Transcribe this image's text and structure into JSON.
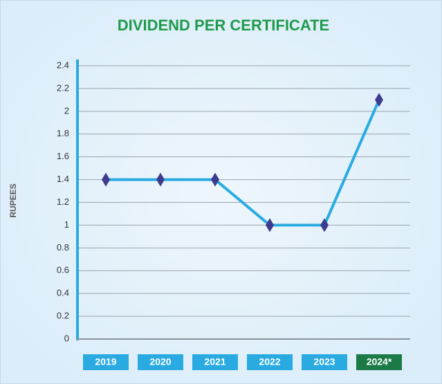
{
  "chart_data": {
    "type": "line",
    "title": "DIVIDEND PER CERTIFICATE",
    "y_label": "RUPEES",
    "categories": [
      "2019",
      "2020",
      "2021",
      "2022",
      "2023",
      "2024*"
    ],
    "series": [
      {
        "name": "Dividend",
        "color": "#29abe2",
        "marker_color": "#3d3b8e",
        "values": [
          1.4,
          1.4,
          1.4,
          1.0,
          1.0,
          2.1
        ]
      }
    ],
    "category_colors": [
      "#29abe2",
      "#29abe2",
      "#29abe2",
      "#29abe2",
      "#29abe2",
      "#1b7a45"
    ],
    "ylim": [
      0,
      2.4
    ],
    "yticks": [
      0,
      0.2,
      0.4,
      0.6,
      0.8,
      1,
      1.2,
      1.4,
      1.6,
      1.8,
      2,
      2.2,
      2.4
    ],
    "grid": true
  }
}
